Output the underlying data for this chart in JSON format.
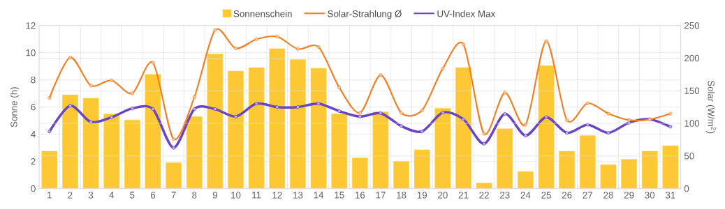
{
  "chart_data": {
    "type": "bar",
    "categories": [
      "1",
      "2",
      "3",
      "4",
      "5",
      "6",
      "7",
      "8",
      "9",
      "10",
      "11",
      "12",
      "13",
      "14",
      "15",
      "16",
      "17",
      "18",
      "19",
      "20",
      "21",
      "22",
      "23",
      "24",
      "25",
      "26",
      "27",
      "28",
      "29",
      "30",
      "31"
    ],
    "series": [
      {
        "name": "Sonnenschein",
        "color": "#fcc934",
        "values": [
          2.75,
          6.9,
          6.65,
          5.5,
          5.05,
          8.4,
          1.9,
          5.3,
          9.9,
          8.65,
          8.9,
          10.3,
          9.5,
          8.85,
          5.5,
          2.25,
          5.65,
          2.0,
          2.85,
          5.9,
          8.9,
          0.4,
          4.4,
          1.25,
          9.05,
          2.75,
          3.9,
          1.75,
          2.15,
          2.75,
          3.15
        ]
      },
      {
        "name": "Solar-Strahlung Ø",
        "type": "line",
        "axis": "y2",
        "color": "#f57c1f",
        "values": [
          139,
          201,
          158,
          166,
          146,
          193,
          76,
          140,
          243,
          215,
          229,
          233,
          214,
          217,
          155,
          116,
          174,
          116,
          120,
          184,
          221,
          84,
          147,
          98,
          226,
          105,
          131,
          115,
          105,
          106,
          115
        ]
      },
      {
        "name": "UV-Index Max",
        "type": "line",
        "color": "#6a44c4",
        "values": [
          4.2,
          6.1,
          4.9,
          5.25,
          5.9,
          5.85,
          3.0,
          5.85,
          5.85,
          5.3,
          6.25,
          6.0,
          6.0,
          6.25,
          5.7,
          5.3,
          5.55,
          4.6,
          4.2,
          5.6,
          5.1,
          3.3,
          5.5,
          3.9,
          5.25,
          4.1,
          4.7,
          4.1,
          4.85,
          5.1,
          4.55
        ]
      }
    ],
    "ylabel": "Sonne (h)",
    "y2label": "Solar (W/m$^{2}$)",
    "ylim": [
      0,
      12
    ],
    "yticks": [
      0,
      2,
      4,
      6,
      8,
      10,
      12
    ],
    "y2lim": [
      0,
      250
    ],
    "y2ticks": [
      0,
      50,
      100,
      150,
      200,
      250
    ],
    "grid": true,
    "legend": "top",
    "marker": "circle"
  }
}
